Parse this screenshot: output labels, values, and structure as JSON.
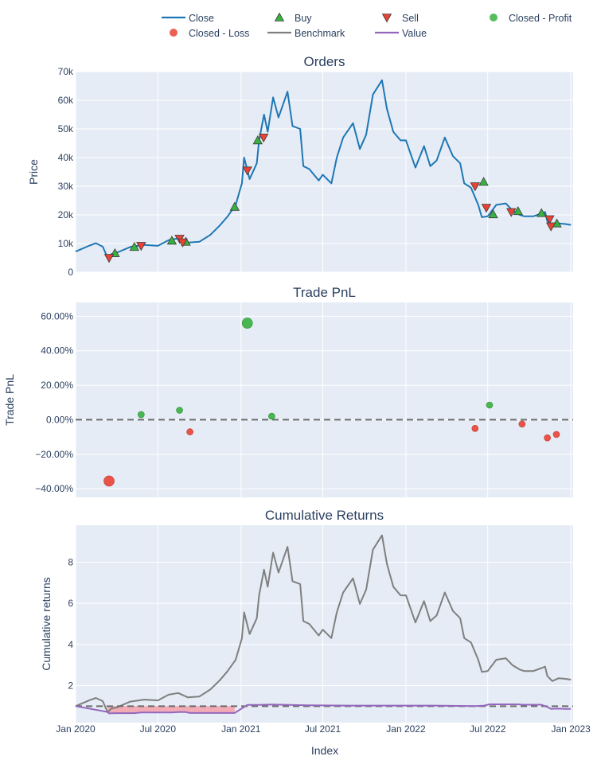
{
  "legend": [
    {
      "name": "Close",
      "kind": "line",
      "color": "#1f77b4"
    },
    {
      "name": "Buy",
      "kind": "triangle-up",
      "color": "#37b13f"
    },
    {
      "name": "Sell",
      "kind": "triangle-down",
      "color": "#ea4335"
    },
    {
      "name": "Closed - Profit",
      "kind": "circle",
      "color": "#37b13f"
    },
    {
      "name": "Closed - Loss",
      "kind": "circle",
      "color": "#ea4335"
    },
    {
      "name": "Benchmark",
      "kind": "line",
      "color": "#7f7f7f"
    },
    {
      "name": "Value",
      "kind": "line",
      "color": "#9467bd"
    }
  ],
  "colors": {
    "plot_bg": "#e5ecf6",
    "grid": "#ffffff",
    "close": "#1f77b4",
    "benchmark": "#7f7f7f",
    "value": "#9467bd",
    "profit": "#37b13f",
    "loss": "#ea4335",
    "drawdown_fill": "#f4a0a8"
  },
  "x_axis": {
    "title": "Index",
    "tick_labels": [
      "Jan 2020",
      "Jul 2020",
      "Jan 2021",
      "Jul 2021",
      "Jan 2022",
      "Jul 2022",
      "Jan 2023"
    ]
  },
  "chart_data": [
    {
      "type": "line",
      "title": "Orders",
      "ylabel": "Price",
      "ylim": [
        0,
        70000
      ],
      "y_tick_labels": [
        "0",
        "10k",
        "20k",
        "30k",
        "40k",
        "50k",
        "60k",
        "70k"
      ],
      "x_range": [
        "2020-01-01",
        "2023-01-01"
      ],
      "series": [
        {
          "name": "Close",
          "x": [
            "2020-01-01",
            "2020-02-01",
            "2020-02-15",
            "2020-03-01",
            "2020-03-12",
            "2020-03-20",
            "2020-04-01",
            "2020-05-01",
            "2020-06-01",
            "2020-07-01",
            "2020-07-25",
            "2020-08-15",
            "2020-09-05",
            "2020-10-01",
            "2020-10-25",
            "2020-11-15",
            "2020-12-01",
            "2020-12-20",
            "2021-01-03",
            "2021-01-08",
            "2021-01-20",
            "2021-02-05",
            "2021-02-10",
            "2021-02-21",
            "2021-03-01",
            "2021-03-13",
            "2021-03-25",
            "2021-04-14",
            "2021-04-25",
            "2021-05-12",
            "2021-05-19",
            "2021-06-01",
            "2021-06-22",
            "2021-07-01",
            "2021-07-20",
            "2021-08-01",
            "2021-08-15",
            "2021-09-06",
            "2021-09-21",
            "2021-10-05",
            "2021-10-20",
            "2021-11-09",
            "2021-11-20",
            "2021-12-04",
            "2021-12-20",
            "2022-01-01",
            "2022-01-22",
            "2022-02-10",
            "2022-02-24",
            "2022-03-10",
            "2022-03-28",
            "2022-04-15",
            "2022-05-01",
            "2022-05-10",
            "2022-05-25",
            "2022-06-10",
            "2022-06-18",
            "2022-07-01",
            "2022-07-20",
            "2022-08-10",
            "2022-08-25",
            "2022-09-10",
            "2022-09-20",
            "2022-10-10",
            "2022-10-28",
            "2022-11-05",
            "2022-11-10",
            "2022-11-21",
            "2022-12-05",
            "2022-12-20",
            "2023-01-01"
          ],
          "values": [
            7200,
            9300,
            10100,
            8900,
            5000,
            6300,
            6800,
            8800,
            9500,
            9200,
            11200,
            11800,
            10300,
            10600,
            13000,
            16300,
            19200,
            23400,
            31000,
            40000,
            32500,
            38000,
            46000,
            55000,
            49000,
            61000,
            54000,
            63000,
            51000,
            50000,
            37000,
            36000,
            32000,
            34000,
            31000,
            40000,
            47000,
            52000,
            43000,
            48000,
            62000,
            67000,
            57000,
            49000,
            46000,
            46000,
            36500,
            44000,
            37000,
            39000,
            47000,
            40500,
            38000,
            31000,
            29500,
            23500,
            19200,
            19500,
            23500,
            24000,
            21500,
            20000,
            19500,
            19500,
            20500,
            21000,
            17800,
            16000,
            17000,
            16800,
            16500
          ]
        }
      ],
      "buy_markers": [
        {
          "x": "2020-03-28",
          "y": 6600
        },
        {
          "x": "2020-05-10",
          "y": 8800
        },
        {
          "x": "2020-08-01",
          "y": 11000
        },
        {
          "x": "2020-09-01",
          "y": 10600
        },
        {
          "x": "2020-12-18",
          "y": 22800
        },
        {
          "x": "2021-02-07",
          "y": 46000
        },
        {
          "x": "2022-06-22",
          "y": 31500
        },
        {
          "x": "2022-07-13",
          "y": 20200
        },
        {
          "x": "2022-09-06",
          "y": 21300
        },
        {
          "x": "2022-10-28",
          "y": 20600
        },
        {
          "x": "2022-12-01",
          "y": 17000
        }
      ],
      "sell_markers": [
        {
          "x": "2020-03-15",
          "y": 5000
        },
        {
          "x": "2020-05-25",
          "y": 9200
        },
        {
          "x": "2020-08-18",
          "y": 11700
        },
        {
          "x": "2020-08-25",
          "y": 10400
        },
        {
          "x": "2021-01-15",
          "y": 35500
        },
        {
          "x": "2021-02-20",
          "y": 47000
        },
        {
          "x": "2022-06-03",
          "y": 30000
        },
        {
          "x": "2022-06-28",
          "y": 22500
        },
        {
          "x": "2022-08-22",
          "y": 21000
        },
        {
          "x": "2022-11-15",
          "y": 18500
        },
        {
          "x": "2022-11-18",
          "y": 16000
        }
      ]
    },
    {
      "type": "scatter",
      "title": "Trade PnL",
      "ylabel": "Trade PnL",
      "ylim": [
        -0.45,
        0.68
      ],
      "y_tick_labels": [
        "−40.00%",
        "−20.00%",
        "0.00%",
        "20.00%",
        "40.00%",
        "60.00%"
      ],
      "zero_line": true,
      "points": [
        {
          "x": "2020-03-15",
          "y": -0.355,
          "result": "loss",
          "size": "large"
        },
        {
          "x": "2020-05-25",
          "y": 0.03,
          "result": "profit",
          "size": "small"
        },
        {
          "x": "2020-08-18",
          "y": 0.055,
          "result": "profit",
          "size": "small"
        },
        {
          "x": "2020-09-10",
          "y": -0.07,
          "result": "loss",
          "size": "small"
        },
        {
          "x": "2021-01-15",
          "y": 0.56,
          "result": "profit",
          "size": "large"
        },
        {
          "x": "2021-03-10",
          "y": 0.02,
          "result": "profit",
          "size": "small"
        },
        {
          "x": "2022-06-03",
          "y": -0.05,
          "result": "loss",
          "size": "small"
        },
        {
          "x": "2022-07-05",
          "y": 0.085,
          "result": "profit",
          "size": "small"
        },
        {
          "x": "2022-09-15",
          "y": -0.025,
          "result": "loss",
          "size": "small"
        },
        {
          "x": "2022-11-10",
          "y": -0.105,
          "result": "loss",
          "size": "small"
        },
        {
          "x": "2022-11-30",
          "y": -0.085,
          "result": "loss",
          "size": "small"
        }
      ]
    },
    {
      "type": "line",
      "title": "Cumulative Returns",
      "ylabel": "Cumulative returns",
      "ylim": [
        0.2,
        9.8
      ],
      "y_tick_labels": [
        "2",
        "4",
        "6",
        "8"
      ],
      "reference_line": 1,
      "series": [
        {
          "name": "Benchmark",
          "x": [
            "2020-01-01",
            "2020-02-01",
            "2020-02-15",
            "2020-03-01",
            "2020-03-12",
            "2020-03-20",
            "2020-04-01",
            "2020-05-01",
            "2020-06-01",
            "2020-07-01",
            "2020-07-25",
            "2020-08-15",
            "2020-09-05",
            "2020-10-01",
            "2020-10-25",
            "2020-11-15",
            "2020-12-01",
            "2020-12-20",
            "2021-01-03",
            "2021-01-08",
            "2021-01-20",
            "2021-02-05",
            "2021-02-10",
            "2021-02-21",
            "2021-03-01",
            "2021-03-13",
            "2021-03-25",
            "2021-04-14",
            "2021-04-25",
            "2021-05-12",
            "2021-05-19",
            "2021-06-01",
            "2021-06-22",
            "2021-07-01",
            "2021-07-20",
            "2021-08-01",
            "2021-08-15",
            "2021-09-06",
            "2021-09-21",
            "2021-10-05",
            "2021-10-20",
            "2021-11-09",
            "2021-11-20",
            "2021-12-04",
            "2021-12-20",
            "2022-01-01",
            "2022-01-22",
            "2022-02-10",
            "2022-02-24",
            "2022-03-10",
            "2022-03-28",
            "2022-04-15",
            "2022-05-01",
            "2022-05-10",
            "2022-05-25",
            "2022-06-10",
            "2022-06-18",
            "2022-07-01",
            "2022-07-20",
            "2022-08-10",
            "2022-08-25",
            "2022-09-10",
            "2022-09-20",
            "2022-10-10",
            "2022-10-28",
            "2022-11-05",
            "2022-11-10",
            "2022-11-21",
            "2022-12-05",
            "2022-12-20",
            "2023-01-01"
          ],
          "values": [
            1.0,
            1.29,
            1.4,
            1.24,
            0.7,
            0.88,
            0.94,
            1.22,
            1.32,
            1.28,
            1.56,
            1.64,
            1.43,
            1.47,
            1.81,
            2.26,
            2.67,
            3.25,
            4.3,
            5.56,
            4.51,
            5.28,
            6.39,
            7.64,
            6.81,
            8.47,
            7.5,
            8.75,
            7.08,
            6.94,
            5.14,
            5.0,
            4.44,
            4.72,
            4.31,
            5.56,
            6.53,
            7.22,
            5.97,
            6.67,
            8.61,
            9.31,
            7.92,
            6.81,
            6.39,
            6.39,
            5.07,
            6.11,
            5.14,
            5.42,
            6.53,
            5.63,
            5.28,
            4.31,
            4.1,
            3.26,
            2.67,
            2.71,
            3.26,
            3.33,
            2.99,
            2.78,
            2.71,
            2.71,
            2.85,
            2.92,
            2.47,
            2.22,
            2.36,
            2.33,
            2.29
          ]
        },
        {
          "name": "Value",
          "x": [
            "2020-01-01",
            "2020-03-12",
            "2020-03-15",
            "2020-03-28",
            "2020-05-10",
            "2020-05-25",
            "2020-08-01",
            "2020-08-18",
            "2020-09-01",
            "2020-09-10",
            "2020-12-18",
            "2021-01-15",
            "2021-02-07",
            "2021-03-10",
            "2021-06-01",
            "2021-09-01",
            "2021-12-01",
            "2022-03-01",
            "2022-06-03",
            "2022-06-22",
            "2022-07-05",
            "2022-09-06",
            "2022-09-15",
            "2022-10-28",
            "2022-11-10",
            "2022-11-18",
            "2022-12-01",
            "2022-12-20",
            "2023-01-01"
          ],
          "values": [
            1.0,
            0.72,
            0.65,
            0.66,
            0.66,
            0.69,
            0.69,
            0.72,
            0.71,
            0.67,
            0.67,
            1.06,
            1.06,
            1.08,
            1.04,
            1.03,
            1.03,
            1.03,
            1.0,
            1.02,
            1.09,
            1.09,
            1.07,
            1.07,
            0.96,
            0.87,
            0.88,
            0.87,
            0.87
          ]
        }
      ]
    }
  ]
}
